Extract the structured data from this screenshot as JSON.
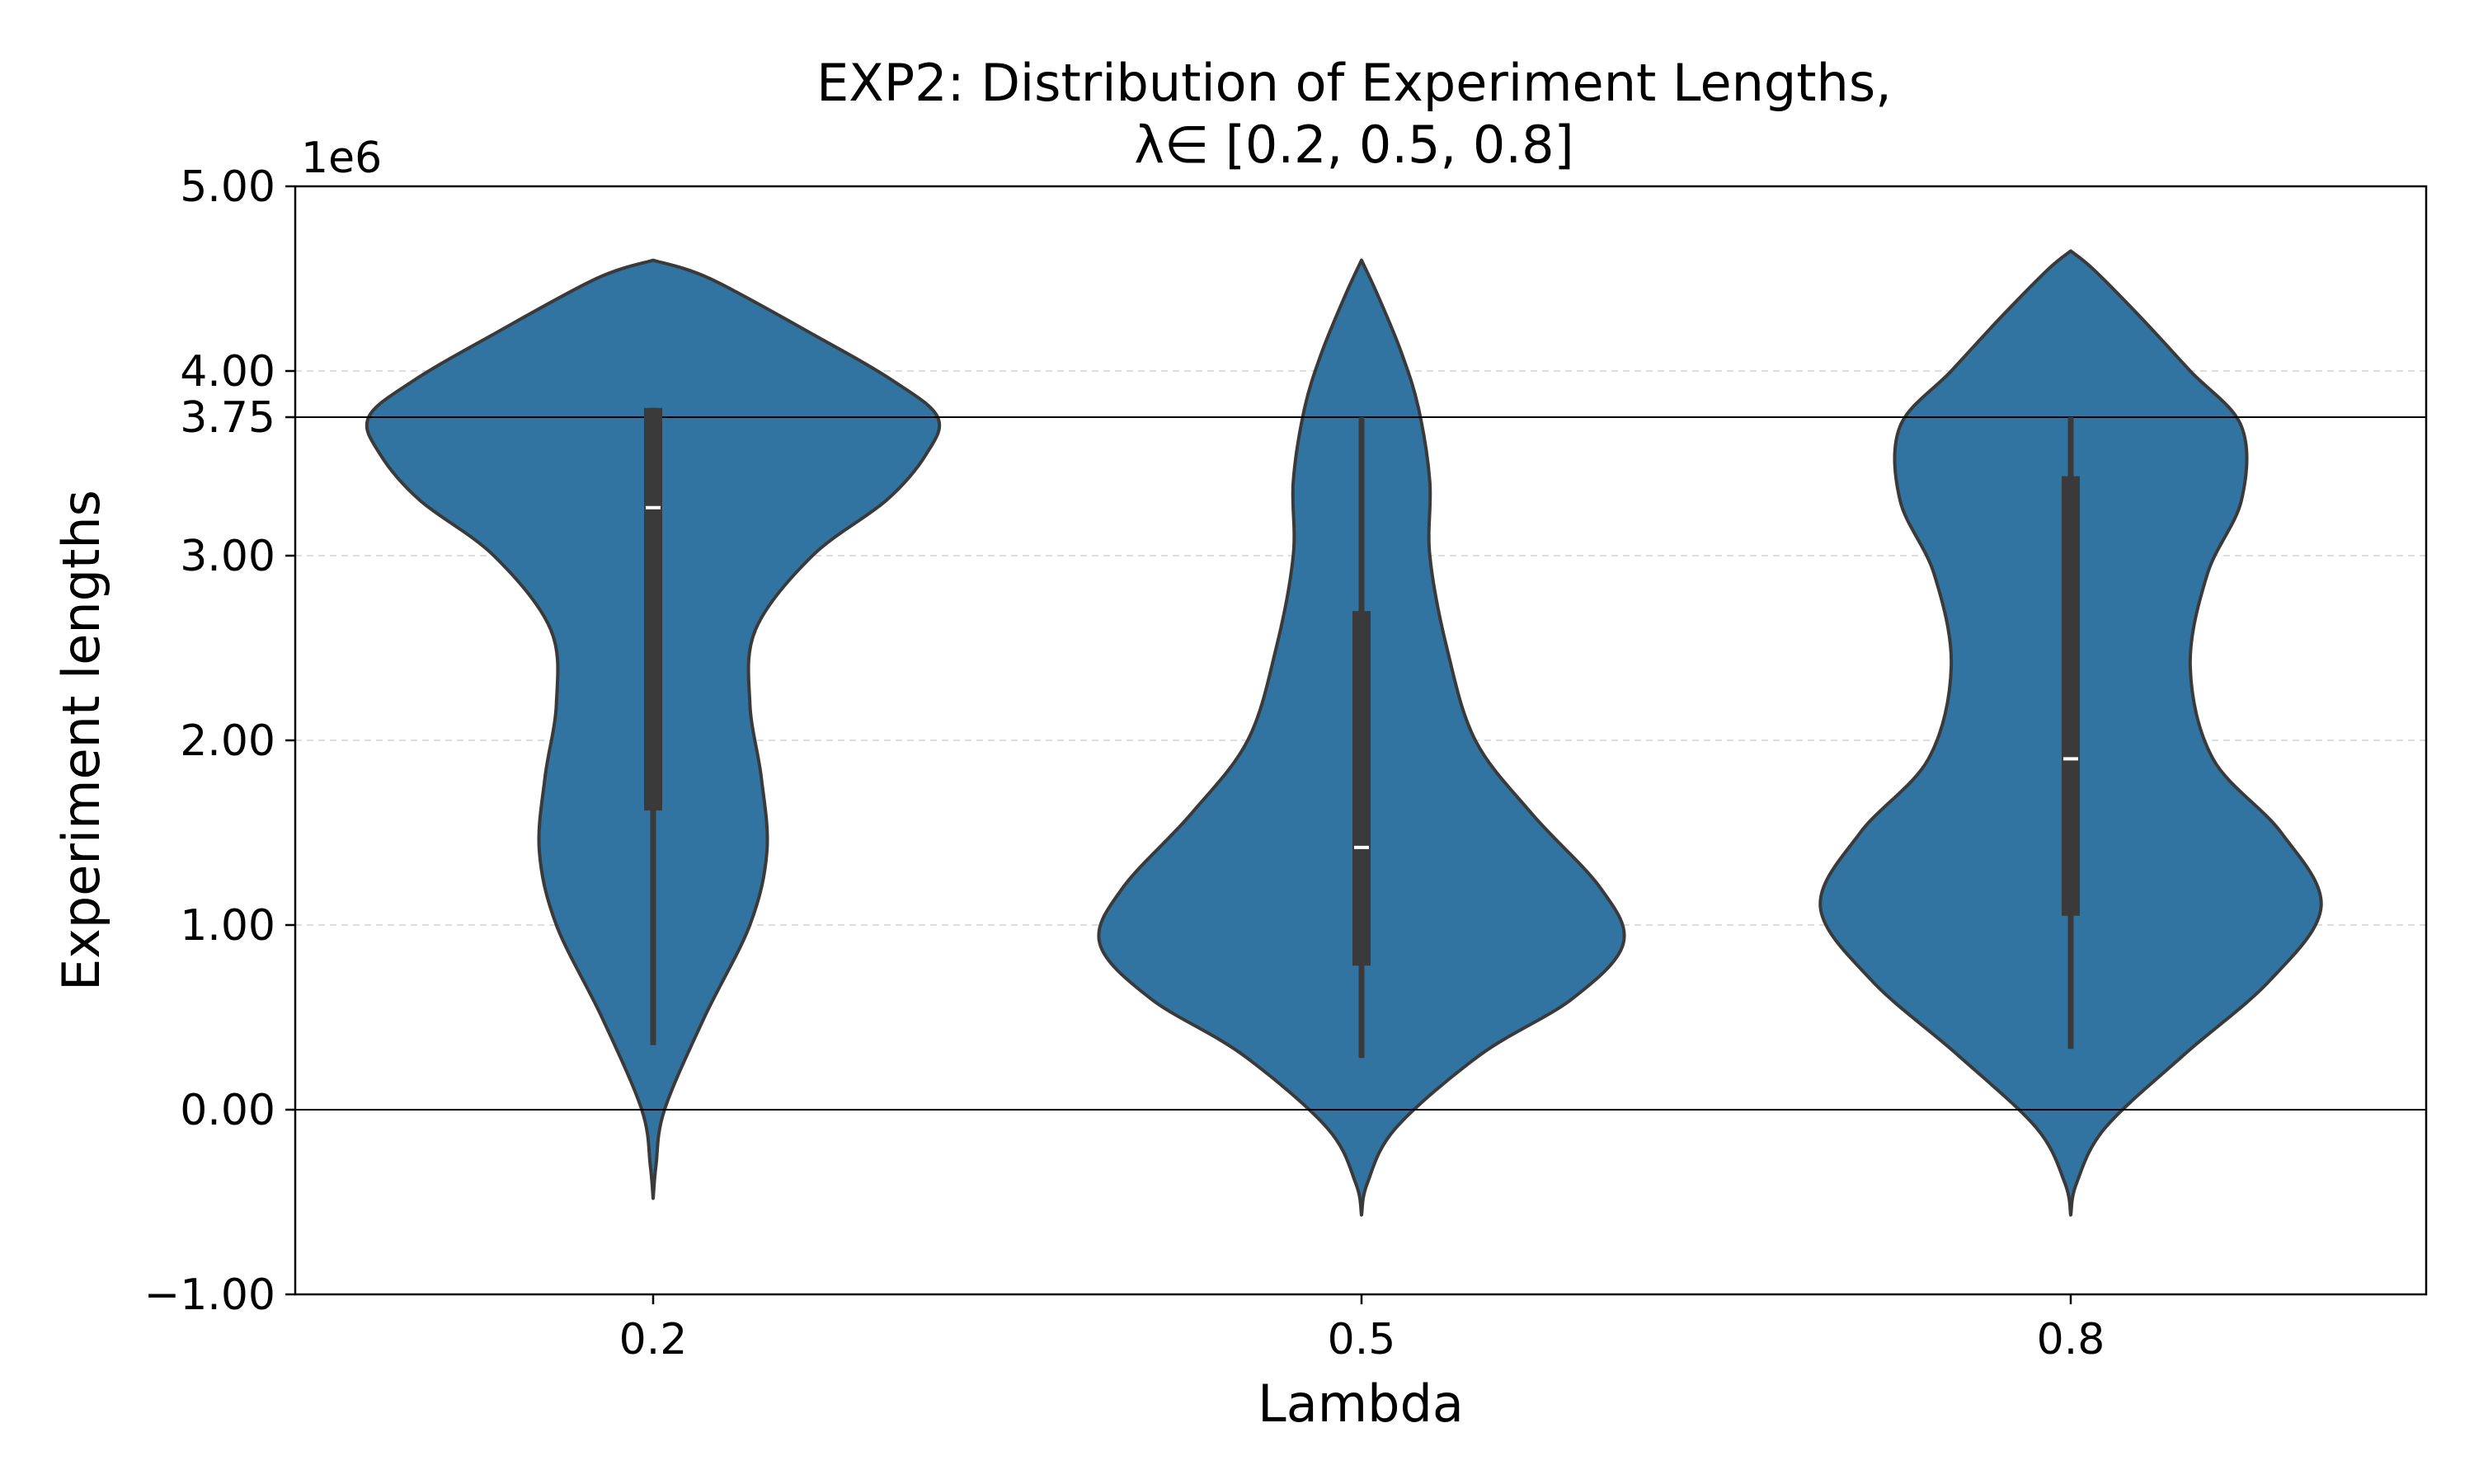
{
  "chart_data": {
    "type": "violin",
    "title": "EXP2: Distribution of Experiment Lengths,",
    "subtitle": "λ∈ [0.2, 0.5, 0.8]",
    "xlabel": "Lambda",
    "ylabel": "Experiment lengths",
    "y_offset_label": "1e6",
    "categories": [
      "0.2",
      "0.5",
      "0.8"
    ],
    "ylim": [
      -1.0,
      5.0
    ],
    "yticks": [
      -1.0,
      0.0,
      1.0,
      2.0,
      3.0,
      3.75,
      4.0,
      5.0
    ],
    "ytick_labels": [
      "−1.00",
      "0.00",
      "1.00",
      "2.00",
      "3.00",
      "3.75",
      "4.00",
      "5.00"
    ],
    "grid": "horizontal dashed",
    "reference_lines": [
      0.0,
      3.75
    ],
    "fill_color": "#3274a1",
    "edge_color": "#3a3a3a",
    "box_color": "#3a3a3a",
    "median_color": "#ffffff",
    "violins": [
      {
        "category": "0.2",
        "min": 0.35,
        "q1": 1.62,
        "median": 3.26,
        "q3": 3.8,
        "max": 3.8,
        "kde_top": 4.6,
        "kde_bottom": -0.48,
        "profile": [
          [
            -0.48,
            0.0
          ],
          [
            -0.3,
            0.01
          ],
          [
            0.0,
            0.04
          ],
          [
            0.5,
            0.18
          ],
          [
            1.0,
            0.34
          ],
          [
            1.4,
            0.4
          ],
          [
            1.8,
            0.38
          ],
          [
            2.2,
            0.34
          ],
          [
            2.6,
            0.36
          ],
          [
            3.0,
            0.56
          ],
          [
            3.3,
            0.82
          ],
          [
            3.55,
            0.96
          ],
          [
            3.75,
            1.0
          ],
          [
            3.95,
            0.84
          ],
          [
            4.2,
            0.56
          ],
          [
            4.5,
            0.2
          ],
          [
            4.6,
            0.0
          ]
        ]
      },
      {
        "category": "0.5",
        "min": 0.28,
        "q1": 0.78,
        "median": 1.42,
        "q3": 2.7,
        "max": 3.75,
        "kde_top": 4.6,
        "kde_bottom": -0.57,
        "profile": [
          [
            -0.57,
            0.0
          ],
          [
            -0.4,
            0.02
          ],
          [
            -0.1,
            0.12
          ],
          [
            0.3,
            0.42
          ],
          [
            0.6,
            0.74
          ],
          [
            0.9,
            0.92
          ],
          [
            1.2,
            0.84
          ],
          [
            1.6,
            0.6
          ],
          [
            2.0,
            0.4
          ],
          [
            2.5,
            0.3
          ],
          [
            3.0,
            0.24
          ],
          [
            3.4,
            0.24
          ],
          [
            3.8,
            0.2
          ],
          [
            4.1,
            0.14
          ],
          [
            4.4,
            0.06
          ],
          [
            4.6,
            0.0
          ]
        ]
      },
      {
        "category": "0.8",
        "min": 0.33,
        "q1": 1.05,
        "median": 1.9,
        "q3": 3.43,
        "max": 3.75,
        "kde_top": 4.65,
        "kde_bottom": -0.57,
        "profile": [
          [
            -0.57,
            0.0
          ],
          [
            -0.4,
            0.02
          ],
          [
            -0.1,
            0.12
          ],
          [
            0.3,
            0.4
          ],
          [
            0.7,
            0.7
          ],
          [
            1.1,
            0.88
          ],
          [
            1.5,
            0.74
          ],
          [
            1.9,
            0.5
          ],
          [
            2.4,
            0.42
          ],
          [
            2.9,
            0.48
          ],
          [
            3.3,
            0.6
          ],
          [
            3.7,
            0.6
          ],
          [
            4.0,
            0.42
          ],
          [
            4.3,
            0.24
          ],
          [
            4.55,
            0.08
          ],
          [
            4.65,
            0.0
          ]
        ]
      }
    ]
  }
}
